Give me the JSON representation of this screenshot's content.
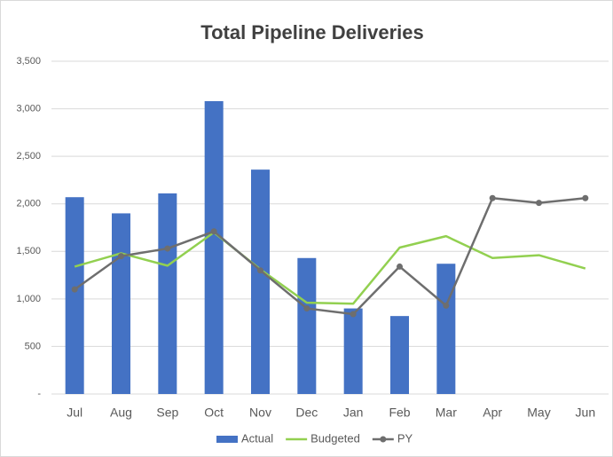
{
  "chart_data": {
    "type": "bar-line",
    "title": "Total Pipeline Deliveries",
    "categories": [
      "Jul",
      "Aug",
      "Sep",
      "Oct",
      "Nov",
      "Dec",
      "Jan",
      "Feb",
      "Mar",
      "Apr",
      "May",
      "Jun"
    ],
    "series": [
      {
        "name": "Actual",
        "type": "bar",
        "color": "#4472c4",
        "values": [
          2070,
          1900,
          2110,
          3080,
          2360,
          1430,
          900,
          820,
          1370,
          null,
          null,
          null
        ]
      },
      {
        "name": "Budgeted",
        "type": "line",
        "color": "#92d050",
        "values": [
          1340,
          1480,
          1350,
          1700,
          1310,
          960,
          950,
          1540,
          1660,
          1430,
          1460,
          1320
        ]
      },
      {
        "name": "PY",
        "type": "line",
        "color": "#6e6e6e",
        "markers": true,
        "values": [
          1100,
          1450,
          1530,
          1710,
          1300,
          900,
          840,
          1340,
          930,
          2060,
          2010,
          2060
        ]
      }
    ],
    "ylim": [
      0,
      3500
    ],
    "yticks": [
      {
        "value": 0,
        "label": "-"
      },
      500,
      {
        "value": 1000,
        "label": "1,000"
      },
      {
        "value": 1500,
        "label": "1,500"
      },
      {
        "value": 2000,
        "label": "2,000"
      },
      {
        "value": 2500,
        "label": "2,500"
      },
      {
        "value": 3000,
        "label": "3,000"
      },
      {
        "value": 3500,
        "label": "3,500"
      }
    ],
    "grid": true,
    "legend": "bottom"
  }
}
